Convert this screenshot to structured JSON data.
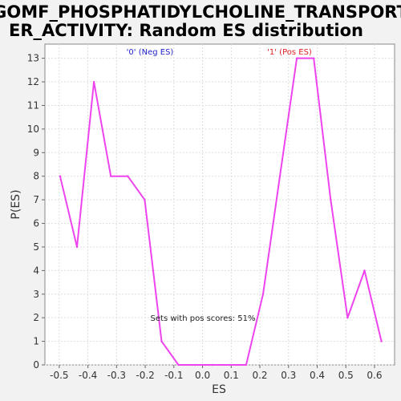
{
  "chart_data": {
    "type": "line",
    "title_line1": "GOMF_PHOSPHATIDYLCHOLINE_TRANSPORT",
    "title_line2": "ER_ACTIVITY: Random ES distribution",
    "xlabel": "ES",
    "ylabel": "P(ES)",
    "xlim": [
      -0.55,
      0.67
    ],
    "ylim": [
      0,
      13.6
    ],
    "x_ticks": [
      -0.5,
      -0.4,
      -0.3,
      -0.2,
      -0.1,
      0.0,
      0.1,
      0.2,
      0.3,
      0.4,
      0.5,
      0.6
    ],
    "x_tick_labels": [
      "-0.5",
      "-0.4",
      "-0.3",
      "-0.2",
      "-0.1",
      "0.0",
      "0.1",
      "0.2",
      "0.3",
      "0.4",
      "0.5",
      "0.6"
    ],
    "y_ticks": [
      0,
      1,
      2,
      3,
      4,
      5,
      6,
      7,
      8,
      9,
      10,
      11,
      12,
      13
    ],
    "y_tick_labels": [
      "0",
      "1",
      "2",
      "3",
      "4",
      "5",
      "6",
      "7",
      "8",
      "9",
      "10",
      "11",
      "12",
      "13"
    ],
    "grid": true,
    "series": [
      {
        "color": "#ee44ee",
        "x": [
          -0.497,
          -0.438,
          -0.379,
          -0.32,
          -0.261,
          -0.202,
          -0.143,
          -0.084,
          -0.025,
          0.034,
          0.093,
          0.152,
          0.211,
          0.27,
          0.329,
          0.388,
          0.447,
          0.506,
          0.565,
          0.624
        ],
        "y": [
          8,
          5,
          12,
          8,
          8,
          7,
          1,
          0,
          0,
          0,
          0,
          0,
          3,
          8,
          13,
          13,
          7,
          2,
          4,
          1
        ]
      }
    ],
    "annotations": {
      "neg_label": "'0' (Neg ES)",
      "neg_color": "#2222cc",
      "pos_label": "'1' (Pos ES)",
      "pos_color": "#dd2222",
      "pos_scores_text": "Sets with pos scores: 51%"
    }
  }
}
